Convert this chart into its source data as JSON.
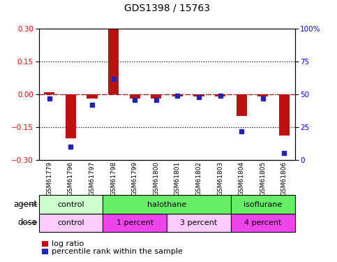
{
  "title": "GDS1398 / 15763",
  "samples": [
    "GSM61779",
    "GSM61796",
    "GSM61797",
    "GSM61798",
    "GSM61799",
    "GSM61800",
    "GSM61801",
    "GSM61802",
    "GSM61803",
    "GSM61804",
    "GSM61805",
    "GSM61806"
  ],
  "log_ratio": [
    0.01,
    -0.2,
    -0.02,
    0.3,
    -0.02,
    -0.02,
    -0.01,
    -0.01,
    -0.01,
    -0.1,
    -0.01,
    -0.19
  ],
  "pct_rank": [
    47,
    10,
    42,
    62,
    46,
    46,
    49,
    48,
    49,
    22,
    47,
    5
  ],
  "ylim_left": [
    -0.3,
    0.3
  ],
  "ylim_right": [
    0,
    100
  ],
  "yticks_left": [
    -0.3,
    -0.15,
    0,
    0.15,
    0.3
  ],
  "yticks_right": [
    0,
    25,
    50,
    75,
    100
  ],
  "dotted_hlines": [
    0.15,
    -0.15
  ],
  "zero_line_y": 0,
  "bar_color": "#bb1111",
  "dot_color": "#2222bb",
  "agent_groups": [
    {
      "label": "control",
      "start": 0,
      "end": 3,
      "color": "#ccffcc"
    },
    {
      "label": "halothane",
      "start": 3,
      "end": 9,
      "color": "#66ee66"
    },
    {
      "label": "isoflurane",
      "start": 9,
      "end": 12,
      "color": "#66ee66"
    }
  ],
  "dose_groups": [
    {
      "label": "control",
      "start": 0,
      "end": 3,
      "color": "#ffccff"
    },
    {
      "label": "1 percent",
      "start": 3,
      "end": 6,
      "color": "#ee44ee"
    },
    {
      "label": "3 percent",
      "start": 6,
      "end": 9,
      "color": "#ffccff"
    },
    {
      "label": "4 percent",
      "start": 9,
      "end": 12,
      "color": "#ee44ee"
    }
  ],
  "legend_log_ratio": "log ratio",
  "legend_pct_rank": "percentile rank within the sample",
  "agent_label": "agent",
  "dose_label": "dose",
  "bg_color": "#ffffff",
  "label_bg": "#c8c8c8",
  "bar_width": 0.5
}
